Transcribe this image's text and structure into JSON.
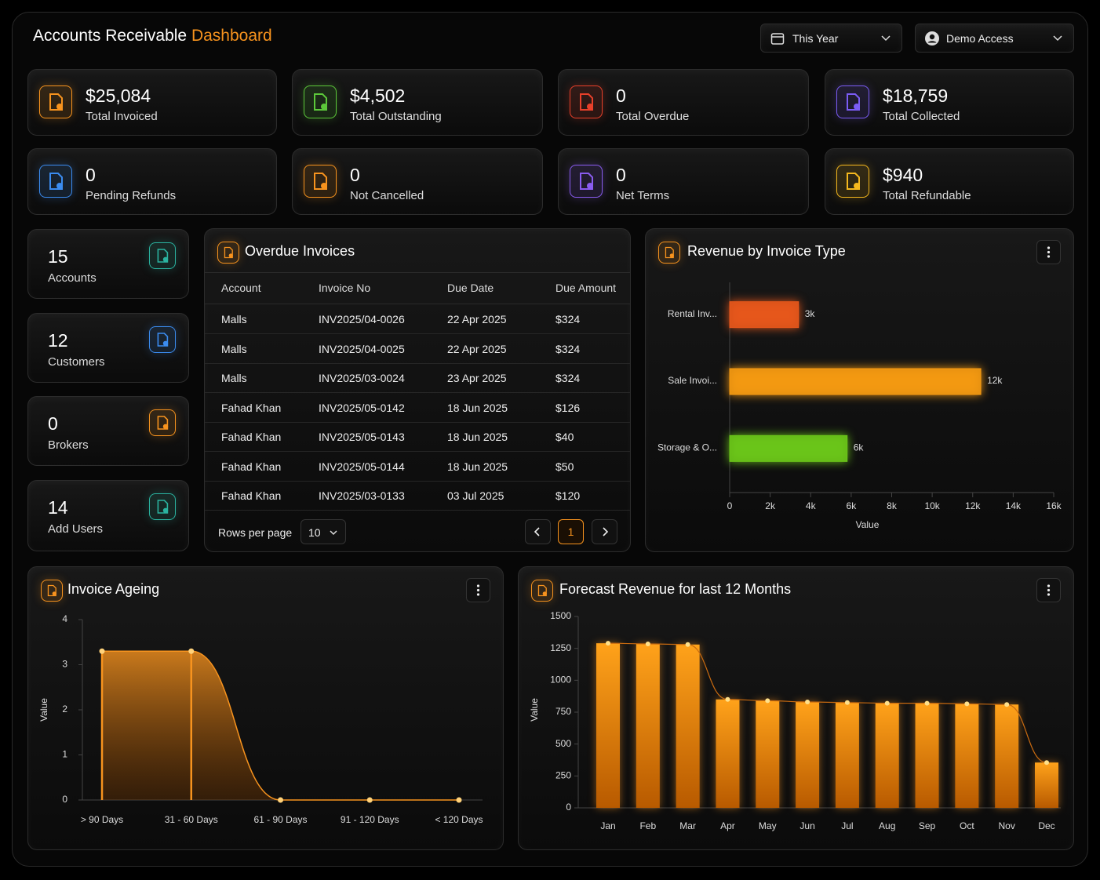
{
  "header": {
    "title": "Accounts Receivable",
    "title_accent": "Dashboard",
    "period": "This Year",
    "user": "Demo Access"
  },
  "stats": [
    {
      "value": "$25,084",
      "label": "Total Invoiced"
    },
    {
      "value": "$4,502",
      "label": "Total Outstanding"
    },
    {
      "value": 0,
      "label": "Total Overdue"
    },
    {
      "value": "$18,759",
      "label": "Total Collected"
    },
    {
      "value": 0,
      "label": "Pending Refunds"
    },
    {
      "value": 0,
      "label": "Not Cancelled"
    },
    {
      "value": 0,
      "label": "Net Terms"
    },
    {
      "value": "$940",
      "label": "Total Refundable"
    }
  ],
  "counts": [
    {
      "value": 15,
      "label": "Accounts"
    },
    {
      "value": 12,
      "label": "Customers"
    },
    {
      "value": 0,
      "label": "Brokers"
    },
    {
      "value": 14,
      "label": "Add Users"
    }
  ],
  "table": {
    "title": "Overdue Invoices",
    "columns": [
      "Account",
      "Invoice No",
      "Due Date",
      "Due Amount"
    ],
    "rows": [
      [
        "Malls",
        "INV2025/04-0026",
        "22 Apr 2025",
        "$324"
      ],
      [
        "Malls",
        "INV2025/04-0025",
        "22 Apr 2025",
        "$324"
      ],
      [
        "Malls",
        "INV2025/03-0024",
        "23 Apr 2025",
        "$324"
      ],
      [
        "Fahad Khan",
        "INV2025/05-0142",
        "18 Jun 2025",
        "$126"
      ],
      [
        "Fahad Khan",
        "INV2025/05-0143",
        "18 Jun 2025",
        "$40"
      ],
      [
        "Fahad Khan",
        "INV2025/05-0144",
        "18 Jun 2025",
        "$50"
      ],
      [
        "Fahad Khan",
        "INV2025/03-0133",
        "03 Jul 2025",
        "$120"
      ]
    ],
    "rows_per_page_label": "Rows per page",
    "rows_per_page": 10,
    "page": 1
  },
  "chart_data": [
    {
      "type": "hbar",
      "title": "Revenue by Invoice Type",
      "categories": [
        "Rental Inv...",
        "Sale Invoi...",
        "Storage & O..."
      ],
      "values": [
        3400,
        12400,
        5800
      ],
      "value_labels": [
        "3k",
        "12k",
        "6k"
      ],
      "colors": [
        "#e8581c",
        "#f59a12",
        "#6cc61a"
      ],
      "xlabel": "Value",
      "xlim": [
        0,
        16000
      ],
      "xticks": [
        0,
        {
          "value": 2000,
          "label": "2k"
        },
        {
          "value": 4000,
          "label": "4k"
        },
        {
          "value": 6000,
          "label": "6k"
        },
        {
          "value": 8000,
          "label": "8k"
        },
        {
          "value": 10000,
          "label": "10k"
        },
        {
          "value": 12000,
          "label": "12k"
        },
        {
          "value": 14000,
          "label": "14k"
        },
        {
          "value": 16000,
          "label": "16k"
        }
      ]
    },
    {
      "type": "area",
      "title": "Invoice Ageing",
      "categories": [
        "> 90 Days",
        "31 - 60 Days",
        "61 - 90 Days",
        "91 - 120 Days",
        "< 120 Days"
      ],
      "values": [
        3.3,
        3.3,
        0,
        0,
        0
      ],
      "color": "#f7931e",
      "ylabel": "Value",
      "ylim": [
        0,
        4
      ],
      "yticks": [
        0,
        1,
        2,
        3,
        4
      ]
    },
    {
      "type": "bar_line",
      "title": "Forecast Revenue for last 12 Months",
      "categories": [
        "Jan",
        "Feb",
        "Mar",
        "Apr",
        "May",
        "Jun",
        "Jul",
        "Aug",
        "Sep",
        "Oct",
        "Nov",
        "Dec"
      ],
      "values": [
        1290,
        1285,
        1280,
        850,
        840,
        830,
        825,
        820,
        820,
        815,
        810,
        355
      ],
      "color": "#f7931e",
      "ylabel": "Value",
      "ylim": [
        0,
        1500
      ],
      "yticks": [
        0,
        250,
        500,
        750,
        1000,
        1250,
        1500
      ]
    }
  ]
}
